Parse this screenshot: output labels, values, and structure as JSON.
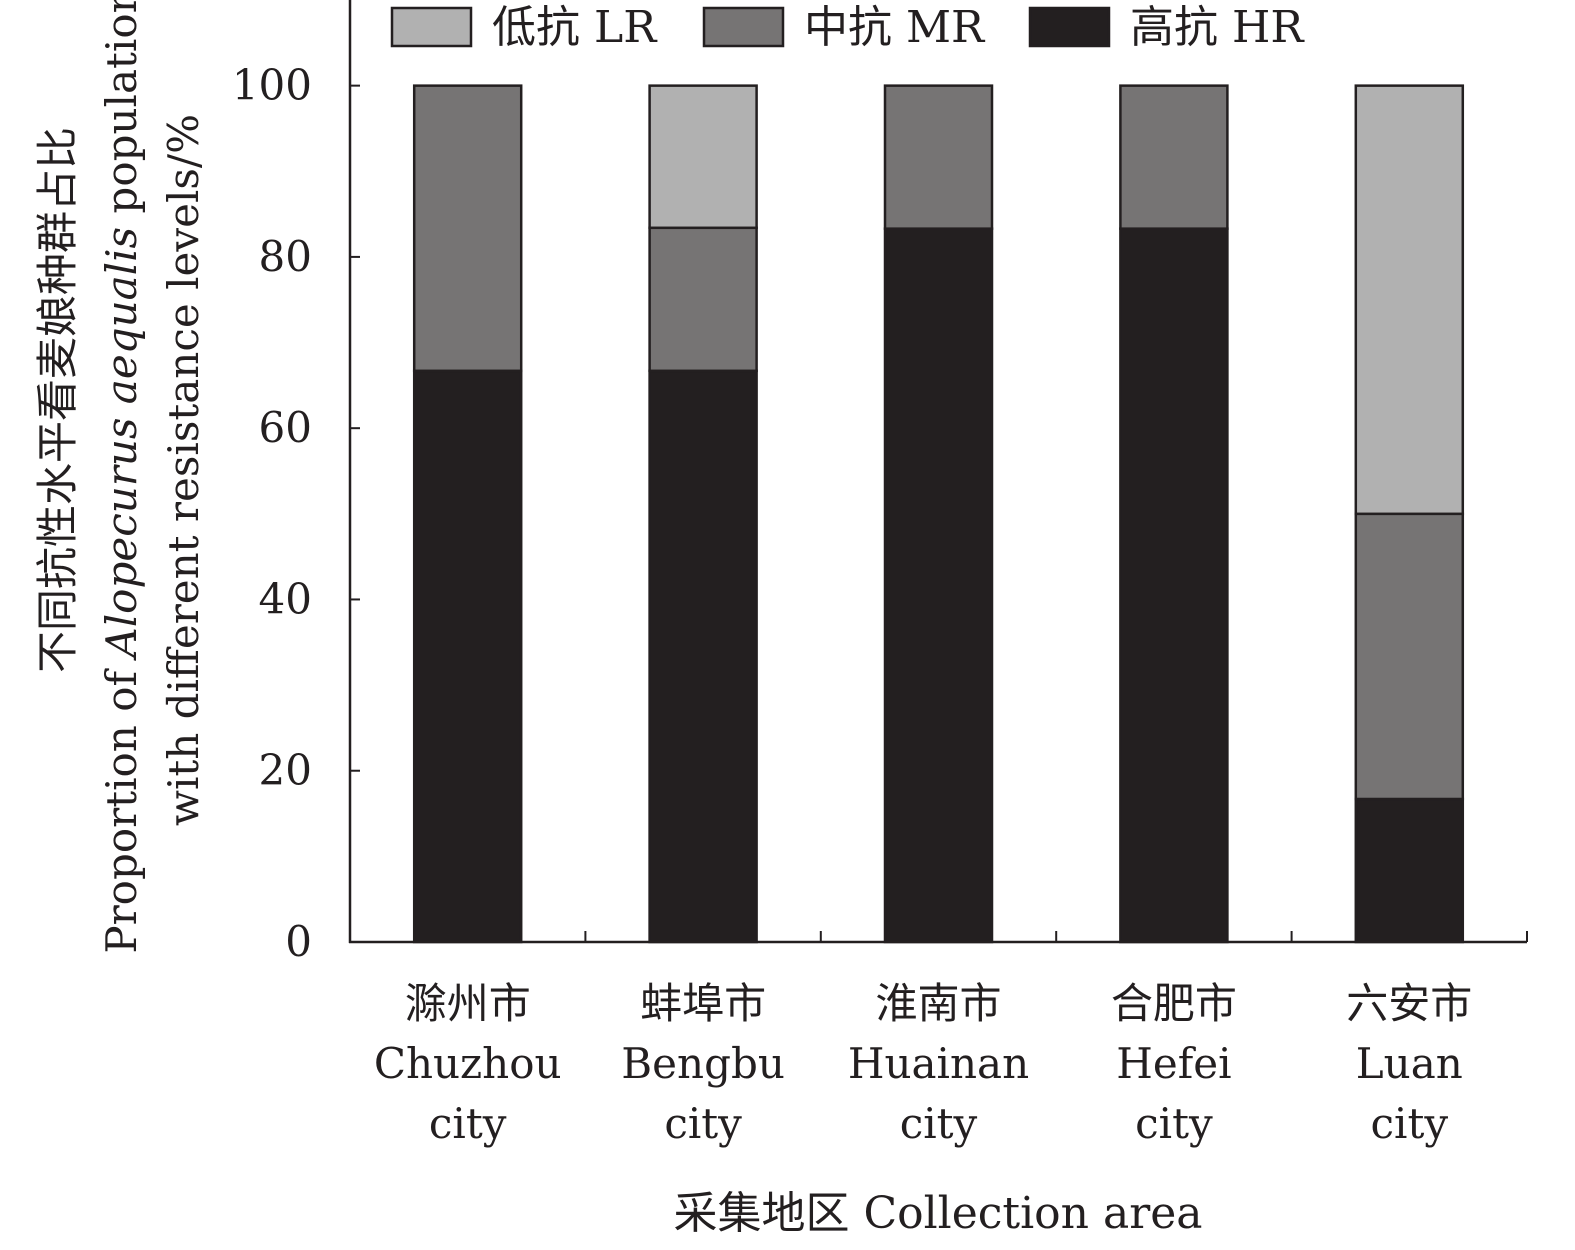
{
  "chart_data": {
    "type": "bar",
    "stacked": true,
    "categories": [
      [
        "滁州市",
        "Chuzhou",
        "city"
      ],
      [
        "蚌埠市",
        "Bengbu",
        "city"
      ],
      [
        "淮南市",
        "Huainan",
        "city"
      ],
      [
        "合肥市",
        "Hefei",
        "city"
      ],
      [
        "六安市",
        "Luan",
        "city"
      ]
    ],
    "series": [
      {
        "name": "高抗 HR",
        "color": "#231f20",
        "values": [
          66.7,
          66.7,
          83.3,
          83.3,
          16.7
        ]
      },
      {
        "name": "中抗 MR",
        "color": "#767474",
        "values": [
          33.3,
          16.7,
          16.7,
          16.7,
          33.3
        ]
      },
      {
        "name": "低抗 LR",
        "color": "#b1b1b1",
        "values": [
          0,
          16.6,
          0,
          0,
          50
        ]
      }
    ],
    "legend_order": [
      2,
      1,
      0
    ],
    "legend_position": "top",
    "ylabel": {
      "zh": "不同抗性水平看麦娘种群占比",
      "en_prefix": "Proportion of ",
      "en_italic": "Alopecurus aequalis",
      "en_suffix": " population",
      "en_line2": "with different resistance levels/%"
    },
    "xlabel": "采集地区 Collection area",
    "yticks": [
      0,
      20,
      40,
      60,
      80,
      100
    ],
    "ylim": [
      0,
      110
    ],
    "grid": false
  }
}
